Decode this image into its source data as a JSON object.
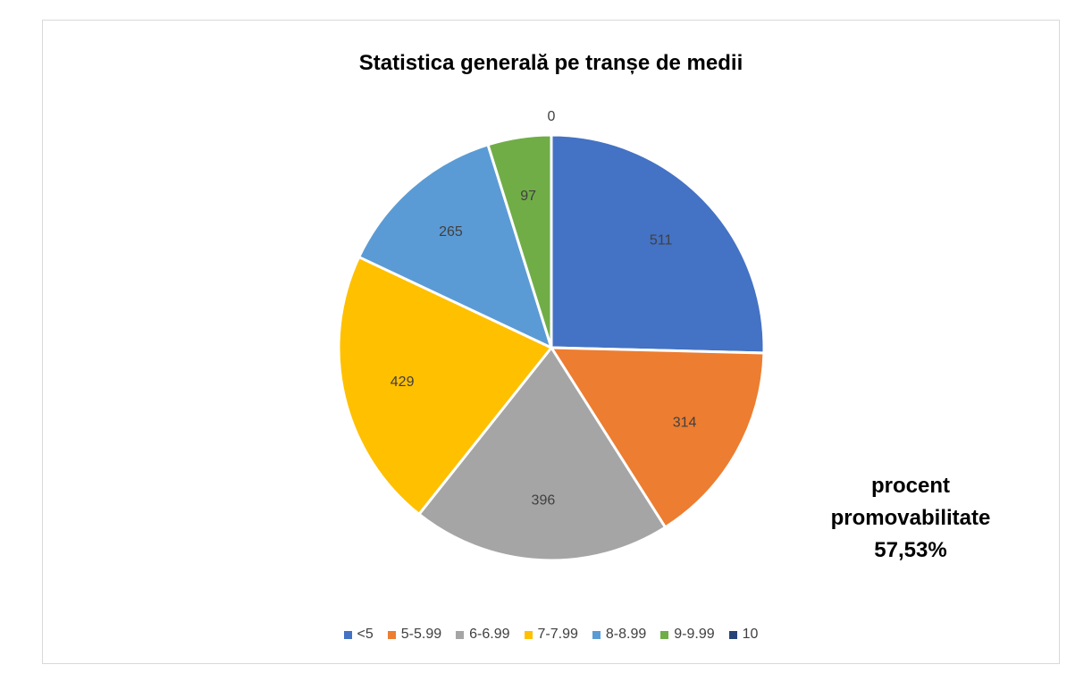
{
  "chart_data": {
    "type": "pie",
    "title": "Statistica generală pe tranșe de medii",
    "categories": [
      "<5",
      "5-5.99",
      "6-6.99",
      "7-7.99",
      "8-8.99",
      "9-9.99",
      "10"
    ],
    "values": [
      511,
      314,
      396,
      429,
      265,
      97,
      0
    ],
    "colors": [
      "#4472c4",
      "#ed7d31",
      "#a5a5a5",
      "#ffc000",
      "#5b9bd5",
      "#70ad47",
      "#264478"
    ],
    "data_labels": [
      "511",
      "314",
      "396",
      "429",
      "265",
      "97",
      "0"
    ],
    "legend_position": "bottom"
  },
  "note": {
    "line1": "procent",
    "line2": "promovabilitate",
    "line3": "57,53%"
  }
}
